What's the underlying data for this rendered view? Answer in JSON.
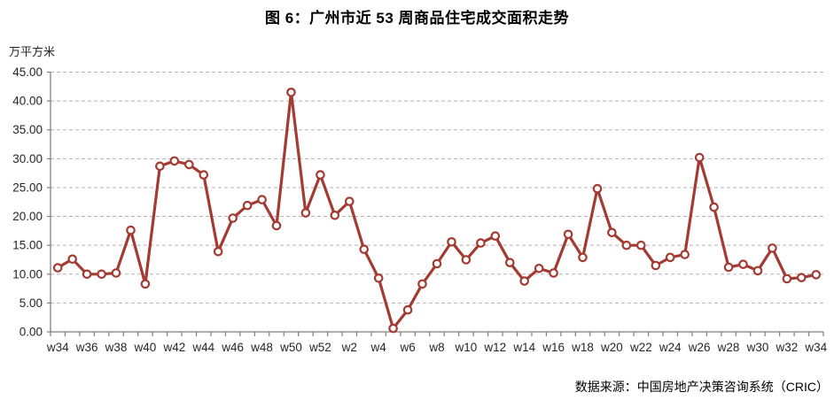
{
  "header": {
    "title": "图 6：广州市近 53 周商品住宅成交面积走势"
  },
  "chart_data": {
    "type": "line",
    "title": "图 6：广州市近 53 周商品住宅成交面积走势",
    "unit_label": "万平方米",
    "xlabel": "",
    "ylabel": "万平方米",
    "ylim": [
      0,
      45
    ],
    "y_tick_labels": [
      "0.00",
      "5.00",
      "10.00",
      "15.00",
      "20.00",
      "25.00",
      "30.00",
      "35.00",
      "40.00",
      "45.00"
    ],
    "x_label_every": 2,
    "grid": "horizontal-dashed",
    "legend": "none",
    "line_color": "#A33B32",
    "marker_style": "open-circle",
    "categories": [
      "w34",
      "w35",
      "w36",
      "w37",
      "w38",
      "w39",
      "w40",
      "w41",
      "w42",
      "w43",
      "w44",
      "w45",
      "w46",
      "w47",
      "w48",
      "w49",
      "w50",
      "w51",
      "w52",
      "w1",
      "w2",
      "w3",
      "w4",
      "w5",
      "w6",
      "w7",
      "w8",
      "w9",
      "w10",
      "w11",
      "w12",
      "w13",
      "w14",
      "w15",
      "w16",
      "w17",
      "w18",
      "w19",
      "w20",
      "w21",
      "w22",
      "w23",
      "w24",
      "w25",
      "w26",
      "w27",
      "w28",
      "w29",
      "w30",
      "w31",
      "w32",
      "w33",
      "w34"
    ],
    "values": [
      11.1,
      12.6,
      10.0,
      10.0,
      10.2,
      17.6,
      8.3,
      28.7,
      29.6,
      29.0,
      27.2,
      13.9,
      19.7,
      21.9,
      22.9,
      18.4,
      41.5,
      20.6,
      27.2,
      20.2,
      22.6,
      14.3,
      9.3,
      0.6,
      3.8,
      8.3,
      11.8,
      15.6,
      12.5,
      15.4,
      16.6,
      12.0,
      8.8,
      11.0,
      10.2,
      16.9,
      12.9,
      24.8,
      17.2,
      15.0,
      15.0,
      11.5,
      12.9,
      13.4,
      30.2,
      21.6,
      11.2,
      11.7,
      10.6,
      14.5,
      9.2,
      9.4,
      9.9
    ]
  },
  "footer": {
    "source": "数据来源：中国房地产决策咨询系统（CRIC）"
  },
  "colors": {
    "series": "#A33B32",
    "grid": "#b3b3b3",
    "axis": "#808080",
    "tick_text": "#262626",
    "title_text": "#000000"
  }
}
